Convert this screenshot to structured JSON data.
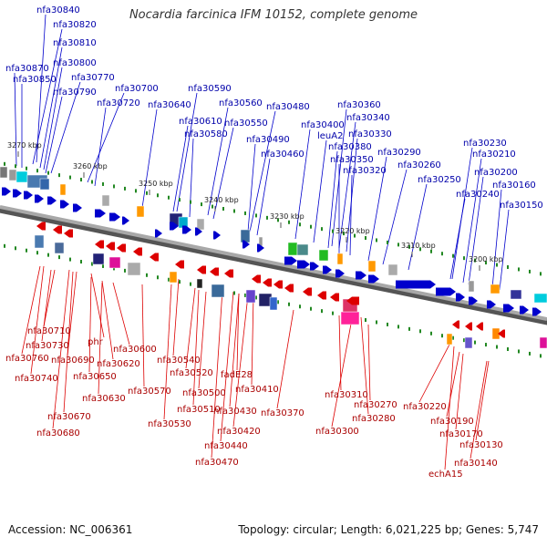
{
  "title": "Nocardia farcinica IFM 10152, complete genome",
  "footer": {
    "accession": "Accession: NC_006361",
    "summary": "Topology: circular; Length: 6,021,225 bp; Genes: 5,747"
  },
  "colors": {
    "forward": "#0000cc",
    "reverse": "#dd0000",
    "backbone": "#888888",
    "marker": "#228822"
  },
  "ticks": [
    {
      "label": "3270 kbp"
    },
    {
      "label": "3260 kbp"
    },
    {
      "label": "3250 kbp"
    },
    {
      "label": "3240 kbp"
    },
    {
      "label": "3230 kbp"
    },
    {
      "label": "3220 kbp"
    },
    {
      "label": "3210 kbp"
    },
    {
      "label": "3200 kbp"
    }
  ],
  "top_labels": [
    "nfa30840",
    "nfa30820",
    "nfa30810",
    "nfa30870",
    "nfa30800",
    "nfa30850",
    "nfa30770",
    "nfa30790",
    "nfa30700",
    "nfa30720",
    "nfa30590",
    "nfa30640",
    "nfa30560",
    "nfa30610",
    "nfa30550",
    "nfa30580",
    "nfa30480",
    "nfa30360",
    "nfa30340",
    "nfa30400",
    "nfa30330",
    "leuA2",
    "nfa30490",
    "nfa30380",
    "nfa30460",
    "nfa30350",
    "nfa30320",
    "nfa30290",
    "nfa30260",
    "nfa30230",
    "nfa30210",
    "nfa30200",
    "nfa30250",
    "nfa30160",
    "nfa30240",
    "nfa30150"
  ],
  "bottom_labels": [
    "nfa30710",
    "nfa30730",
    "phr",
    "nfa30760",
    "nfa30600",
    "nfa30690",
    "nfa30620",
    "nfa30740",
    "nfa30650",
    "nfa30540",
    "nfa30630",
    "nfa30520",
    "nfa30570",
    "fadE28",
    "nfa30500",
    "nfa30410",
    "nfa30510",
    "nfa30670",
    "nfa30430",
    "nfa30530",
    "nfa30420",
    "nfa30680",
    "nfa30440",
    "nfa30470",
    "nfa30370",
    "nfa30310",
    "nfa30300",
    "nfa30280",
    "nfa30270",
    "nfa30220",
    "nfa30190",
    "nfa30170",
    "nfa30130",
    "nfa30140",
    "echA15"
  ]
}
